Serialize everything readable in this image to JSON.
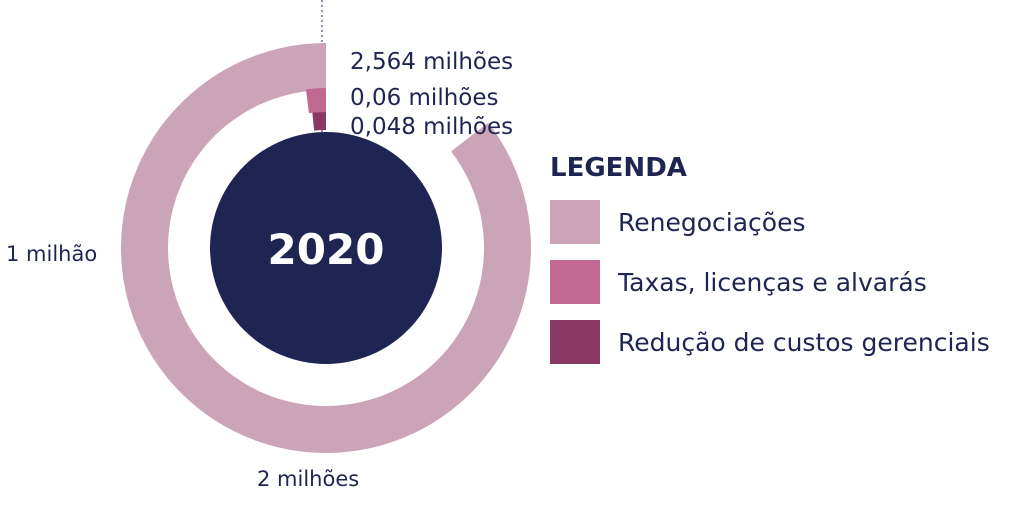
{
  "chart_data": {
    "type": "radial-bar",
    "center_label": "2020",
    "series": [
      {
        "name": "Renegociações",
        "value": 2.564,
        "label": "2,564 milhões",
        "color": "#cca4b8"
      },
      {
        "name": "Taxas, licenças e alvarás",
        "value": 0.06,
        "label": "0,06 milhões",
        "color": "#c06890"
      },
      {
        "name": "Redução de custos gerenciais",
        "value": 0.048,
        "label": "0,048 milhões",
        "color": "#8a3a62"
      }
    ],
    "scale": {
      "full_circle_value": 3,
      "ticks": [
        {
          "value": 1,
          "label": "1 milhão"
        },
        {
          "value": 2,
          "label": "2 milhões"
        }
      ]
    },
    "center_color": "#1f2552",
    "legend": {
      "title": "LEGENDA",
      "placement": "right"
    }
  }
}
